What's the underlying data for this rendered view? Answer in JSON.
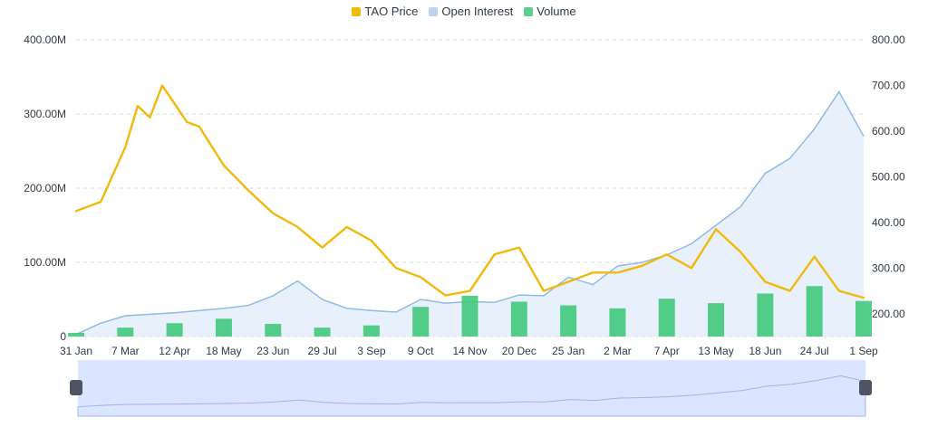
{
  "legend": [
    {
      "label": "TAO Price",
      "color": "#f0b90b"
    },
    {
      "label": "Open Interest",
      "color": "#bcd3ef"
    },
    {
      "label": "Volume",
      "color": "#5ccf8d"
    }
  ],
  "colors": {
    "price": "#f0b90b",
    "open_interest_line": "#8fbbe6",
    "open_interest_fill": "#e8f1fb",
    "volume": "#41c97c",
    "navigator_fill": "#dbe5ff",
    "navigator_line": "#9fb6e8",
    "navigator_handle": "#4b5563"
  },
  "chart_data": {
    "type": "line",
    "x_tick_labels": [
      "31 Jan",
      "7 Mar",
      "12 Apr",
      "18 May",
      "23 Jun",
      "29 Jul",
      "3 Sep",
      "9 Oct",
      "14 Nov",
      "20 Dec",
      "25 Jan",
      "2 Mar",
      "7 Apr",
      "13 May",
      "18 Jun",
      "24 Jul",
      "1 Sep"
    ],
    "y_left_ticks": [
      "0",
      "100.00M",
      "200.00M",
      "300.00M",
      "400.00M"
    ],
    "y_right_ticks": [
      "200.00",
      "300.00",
      "400.00",
      "500.00",
      "600.00",
      "700.00",
      "800.00"
    ],
    "y_left_lim": [
      0,
      400000000
    ],
    "y_right_lim": [
      150,
      800
    ],
    "grid": true,
    "legend_position": "top-center",
    "series": [
      {
        "name": "TAO Price",
        "axis": "right",
        "kind": "line",
        "x": [
          0,
          2,
          4,
          5,
          6,
          7,
          9,
          10,
          12,
          14,
          16,
          18,
          20,
          22,
          24,
          26,
          28,
          30,
          32,
          34,
          36,
          38,
          40,
          42,
          44,
          46,
          48,
          50,
          52,
          54,
          56,
          58,
          60,
          62,
          64
        ],
        "values": [
          425,
          445,
          565,
          655,
          630,
          700,
          620,
          610,
          525,
          470,
          420,
          390,
          345,
          390,
          360,
          300,
          280,
          240,
          250,
          330,
          345,
          250,
          270,
          290,
          290,
          305,
          330,
          300,
          385,
          335,
          270,
          250,
          325,
          250,
          235
        ]
      },
      {
        "name": "Open Interest",
        "axis": "left",
        "kind": "area",
        "x": [
          0,
          2,
          4,
          6,
          8,
          10,
          12,
          14,
          16,
          18,
          20,
          22,
          24,
          26,
          28,
          30,
          32,
          34,
          36,
          38,
          40,
          42,
          44,
          46,
          48,
          50,
          52,
          54,
          56,
          58,
          60,
          62,
          64
        ],
        "values": [
          3000000,
          18000000,
          28000000,
          30000000,
          32000000,
          35000000,
          38000000,
          42000000,
          55000000,
          75000000,
          50000000,
          38000000,
          35000000,
          33000000,
          50000000,
          45000000,
          47000000,
          46000000,
          56000000,
          55000000,
          80000000,
          70000000,
          95000000,
          100000000,
          110000000,
          125000000,
          150000000,
          175000000,
          220000000,
          240000000,
          280000000,
          330000000,
          270000000
        ]
      },
      {
        "name": "Volume",
        "axis": "left",
        "kind": "bar",
        "x": [
          0,
          4,
          8,
          12,
          16,
          20,
          24,
          28,
          32,
          36,
          40,
          44,
          48,
          52,
          56,
          60,
          64
        ],
        "values": [
          5000000,
          12000000,
          18000000,
          24000000,
          17000000,
          12000000,
          15000000,
          40000000,
          55000000,
          47000000,
          42000000,
          38000000,
          51000000,
          45000000,
          58000000,
          68000000,
          48000000
        ]
      }
    ]
  }
}
